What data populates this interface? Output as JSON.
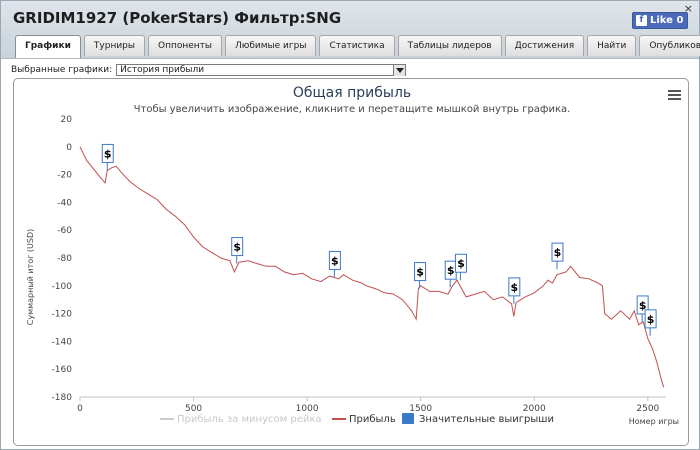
{
  "window": {
    "title": "GRIDIM1927 (PokerStars) Фильтр:SNG",
    "close_glyph": "×",
    "like_label": "Like 0"
  },
  "tabs": [
    {
      "label": "Графики",
      "active": true
    },
    {
      "label": "Турниры"
    },
    {
      "label": "Оппоненты"
    },
    {
      "label": "Любимые игры"
    },
    {
      "label": "Статистика"
    },
    {
      "label": "Таблицы лидеров"
    },
    {
      "label": "Достижения"
    },
    {
      "label": "Найти"
    },
    {
      "label": "Опубликовать"
    }
  ],
  "selector": {
    "label": "Выбранные графики:",
    "value": "История прибыли"
  },
  "chart_data": {
    "type": "line",
    "title": "Общая прибыль",
    "subtitle": "Чтобы увеличить изображение, кликните и перетащите мышкой внутрь графика.",
    "xlabel": "Номер игры",
    "ylabel": "Суммарный итог (USD)",
    "xlim": [
      0,
      2580
    ],
    "ylim": [
      -180,
      20
    ],
    "xticks": [
      0,
      500,
      1000,
      1500,
      2000,
      2500
    ],
    "yticks": [
      20,
      0,
      -20,
      -40,
      -60,
      -80,
      -100,
      -120,
      -140,
      -160,
      -180
    ],
    "grid": false,
    "legend_placement": "bottom-center",
    "line_color": "#c0504d",
    "series": [
      {
        "name": "Прибыль за минусом рейка",
        "visible": false,
        "values": []
      },
      {
        "name": "Прибыль",
        "x": [
          0,
          30,
          60,
          90,
          110,
          120,
          140,
          160,
          190,
          220,
          260,
          300,
          340,
          380,
          420,
          460,
          500,
          540,
          580,
          620,
          660,
          680,
          700,
          740,
          780,
          820,
          860,
          900,
          940,
          980,
          1020,
          1060,
          1100,
          1140,
          1160,
          1200,
          1240,
          1260,
          1300,
          1340,
          1380,
          1420,
          1460,
          1480,
          1490,
          1500,
          1540,
          1580,
          1620,
          1640,
          1660,
          1680,
          1700,
          1740,
          1780,
          1820,
          1860,
          1900,
          1910,
          1920,
          1960,
          2000,
          2040,
          2060,
          2080,
          2100,
          2140,
          2160,
          2200,
          2240,
          2280,
          2300,
          2310,
          2340,
          2380,
          2420,
          2440,
          2460,
          2480,
          2500,
          2520,
          2540,
          2560,
          2570
        ],
        "y": [
          0,
          -10,
          -16,
          -22,
          -26,
          -17,
          -15,
          -14,
          -20,
          -25,
          -30,
          -34,
          -38,
          -45,
          -50,
          -56,
          -65,
          -72,
          -76,
          -80,
          -82,
          -90,
          -83,
          -82,
          -84,
          -86,
          -86,
          -90,
          -92,
          -91,
          -95,
          -97,
          -93,
          -95,
          -92,
          -96,
          -98,
          -100,
          -102,
          -105,
          -106,
          -110,
          -118,
          -124,
          -102,
          -100,
          -104,
          -104,
          -106,
          -100,
          -96,
          -102,
          -108,
          -106,
          -104,
          -110,
          -108,
          -113,
          -122,
          -112,
          -108,
          -105,
          -100,
          -96,
          -98,
          -92,
          -90,
          -86,
          -94,
          -95,
          -98,
          -100,
          -120,
          -124,
          -118,
          -124,
          -118,
          -128,
          -126,
          -138,
          -145,
          -155,
          -168,
          -173
        ]
      },
      {
        "name": "Значительные выигрыши",
        "markers": [
          {
            "x": 120,
            "y": -17,
            "label": "$"
          },
          {
            "x": 690,
            "y": -84,
            "label": "$"
          },
          {
            "x": 1120,
            "y": -94,
            "label": "$"
          },
          {
            "x": 1495,
            "y": -102,
            "label": "$"
          },
          {
            "x": 1630,
            "y": -101,
            "label": "$"
          },
          {
            "x": 1675,
            "y": -96,
            "label": "$"
          },
          {
            "x": 1910,
            "y": -113,
            "label": "$"
          },
          {
            "x": 2100,
            "y": -88,
            "label": "$"
          },
          {
            "x": 2475,
            "y": -126,
            "label": "$"
          },
          {
            "x": 2510,
            "y": -136,
            "label": "$"
          }
        ]
      }
    ]
  }
}
